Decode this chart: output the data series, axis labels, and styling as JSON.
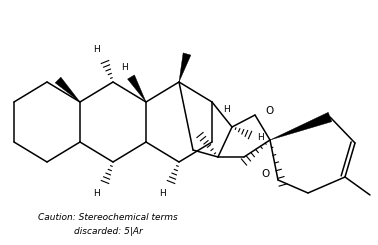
{
  "background_color": "#ffffff",
  "text_color": "#000000",
  "line_color": "#000000",
  "caution_line1": "Caution: Stereochemical terms",
  "caution_line2": "discarded: 5|Ar",
  "caution_fontsize": 6.5,
  "label_fontsize": 6.5,
  "figsize": [
    3.78,
    2.45
  ],
  "dpi": 100,
  "xlim": [
    0,
    378
  ],
  "ylim": [
    0,
    245
  ]
}
